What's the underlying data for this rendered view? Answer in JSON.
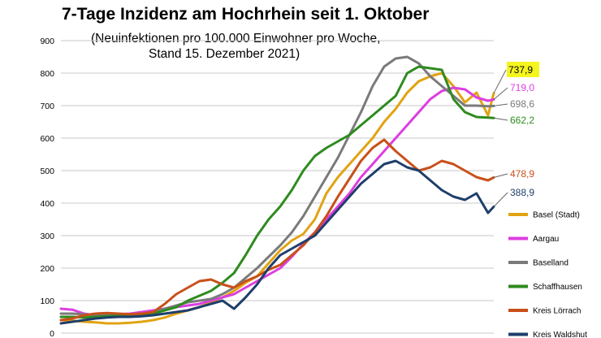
{
  "chart_data": {
    "type": "line",
    "title": "7-Tage Inzidenz am Hochrhein seit 1. Oktober",
    "subtitle_line1": "(Neuinfektionen pro 100.000 Einwohner pro Woche,",
    "subtitle_line2": "Stand 15. Dezember 2021)",
    "ylim": [
      0,
      900
    ],
    "yticks": [
      0,
      100,
      200,
      300,
      400,
      500,
      600,
      700,
      800,
      900
    ],
    "grid": true,
    "legend_position": "right",
    "x": [
      0,
      2,
      4,
      6,
      8,
      10,
      12,
      14,
      16,
      18,
      20,
      22,
      24,
      26,
      28,
      30,
      32,
      34,
      36,
      38,
      40,
      42,
      44,
      46,
      48,
      50,
      52,
      54,
      56,
      58,
      60,
      62,
      64,
      66,
      68,
      70,
      72,
      74,
      75
    ],
    "series": [
      {
        "name": "Basel (Stadt)",
        "color": "#e2a312",
        "end_label": "737,9",
        "values": [
          40,
          38,
          35,
          33,
          30,
          30,
          32,
          35,
          40,
          48,
          60,
          70,
          80,
          95,
          110,
          130,
          155,
          175,
          215,
          255,
          285,
          305,
          350,
          430,
          480,
          520,
          560,
          600,
          650,
          690,
          740,
          775,
          790,
          800,
          760,
          710,
          740,
          670,
          738
        ]
      },
      {
        "name": "Aargau",
        "color": "#dd3ee0",
        "end_label": "719,0",
        "values": [
          75,
          72,
          60,
          55,
          55,
          58,
          60,
          65,
          70,
          75,
          80,
          85,
          90,
          100,
          110,
          120,
          140,
          160,
          180,
          200,
          235,
          275,
          310,
          350,
          390,
          430,
          480,
          520,
          560,
          600,
          640,
          680,
          720,
          745,
          755,
          750,
          725,
          715,
          719
        ]
      },
      {
        "name": "Baselland",
        "color": "#7a7a7a",
        "end_label": "698,6",
        "values": [
          60,
          60,
          58,
          55,
          55,
          55,
          58,
          60,
          65,
          75,
          85,
          95,
          100,
          105,
          120,
          140,
          170,
          200,
          235,
          270,
          310,
          360,
          420,
          480,
          540,
          610,
          680,
          760,
          820,
          845,
          850,
          830,
          790,
          760,
          730,
          700,
          700,
          698,
          699
        ]
      },
      {
        "name": "Schaffhausen",
        "color": "#2e8b1e",
        "end_label": "662,2",
        "values": [
          50,
          50,
          48,
          50,
          52,
          55,
          55,
          58,
          60,
          70,
          80,
          100,
          115,
          130,
          155,
          185,
          240,
          300,
          350,
          390,
          440,
          500,
          545,
          570,
          590,
          610,
          640,
          670,
          700,
          730,
          800,
          820,
          815,
          810,
          720,
          680,
          665,
          663,
          662
        ]
      },
      {
        "name": "Kreis Lörrach",
        "color": "#c8501a",
        "end_label": "478,9",
        "values": [
          40,
          45,
          55,
          60,
          62,
          60,
          58,
          60,
          65,
          90,
          120,
          140,
          160,
          165,
          150,
          140,
          160,
          175,
          195,
          210,
          240,
          270,
          310,
          360,
          420,
          475,
          530,
          570,
          595,
          560,
          530,
          500,
          510,
          530,
          520,
          500,
          480,
          470,
          479
        ]
      },
      {
        "name": "Kreis Waldshut",
        "color": "#1f3e6b",
        "end_label": "388,9",
        "values": [
          30,
          35,
          40,
          45,
          48,
          50,
          50,
          52,
          55,
          60,
          65,
          70,
          80,
          90,
          100,
          75,
          110,
          150,
          200,
          240,
          260,
          280,
          300,
          340,
          380,
          420,
          460,
          490,
          520,
          530,
          510,
          500,
          470,
          440,
          420,
          410,
          430,
          370,
          389
        ]
      }
    ]
  }
}
